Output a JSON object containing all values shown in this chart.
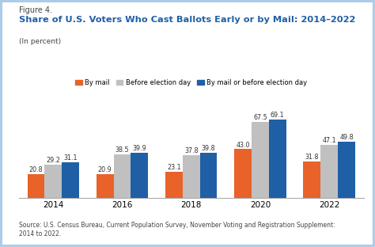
{
  "figure_label": "Figure 4.",
  "title": "Share of U.S. Voters Who Cast Ballots Early or by Mail: 2014–2022",
  "subtitle": "(In percent)",
  "source": "Source: U.S. Census Bureau, Current Population Survey, November Voting and Registration Supplement:\n2014 to 2022.",
  "years": [
    "2014",
    "2016",
    "2018",
    "2020",
    "2022"
  ],
  "by_mail": [
    20.8,
    20.9,
    23.1,
    43.0,
    31.8
  ],
  "before_day": [
    29.2,
    38.5,
    37.8,
    67.5,
    47.1
  ],
  "mail_or_before": [
    31.1,
    39.9,
    39.8,
    69.1,
    49.8
  ],
  "color_mail": "#E8622A",
  "color_before": "#C0C0C0",
  "color_combined": "#1F5FA6",
  "legend_labels": [
    "By mail",
    "Before election day",
    "By mail or before election day"
  ],
  "bar_width": 0.25,
  "ylim": [
    0,
    80
  ],
  "bg_color": "#FFFFFF",
  "border_color": "#AACCE8",
  "title_color": "#1F5FA6",
  "figure_label_color": "#444444",
  "subtitle_color": "#444444",
  "source_color": "#444444",
  "label_fontsize": 5.8,
  "tick_fontsize": 7.5,
  "legend_fontsize": 6.0,
  "figure_label_fontsize": 7.0,
  "title_fontsize": 8.2,
  "subtitle_fontsize": 6.5,
  "source_fontsize": 5.5
}
